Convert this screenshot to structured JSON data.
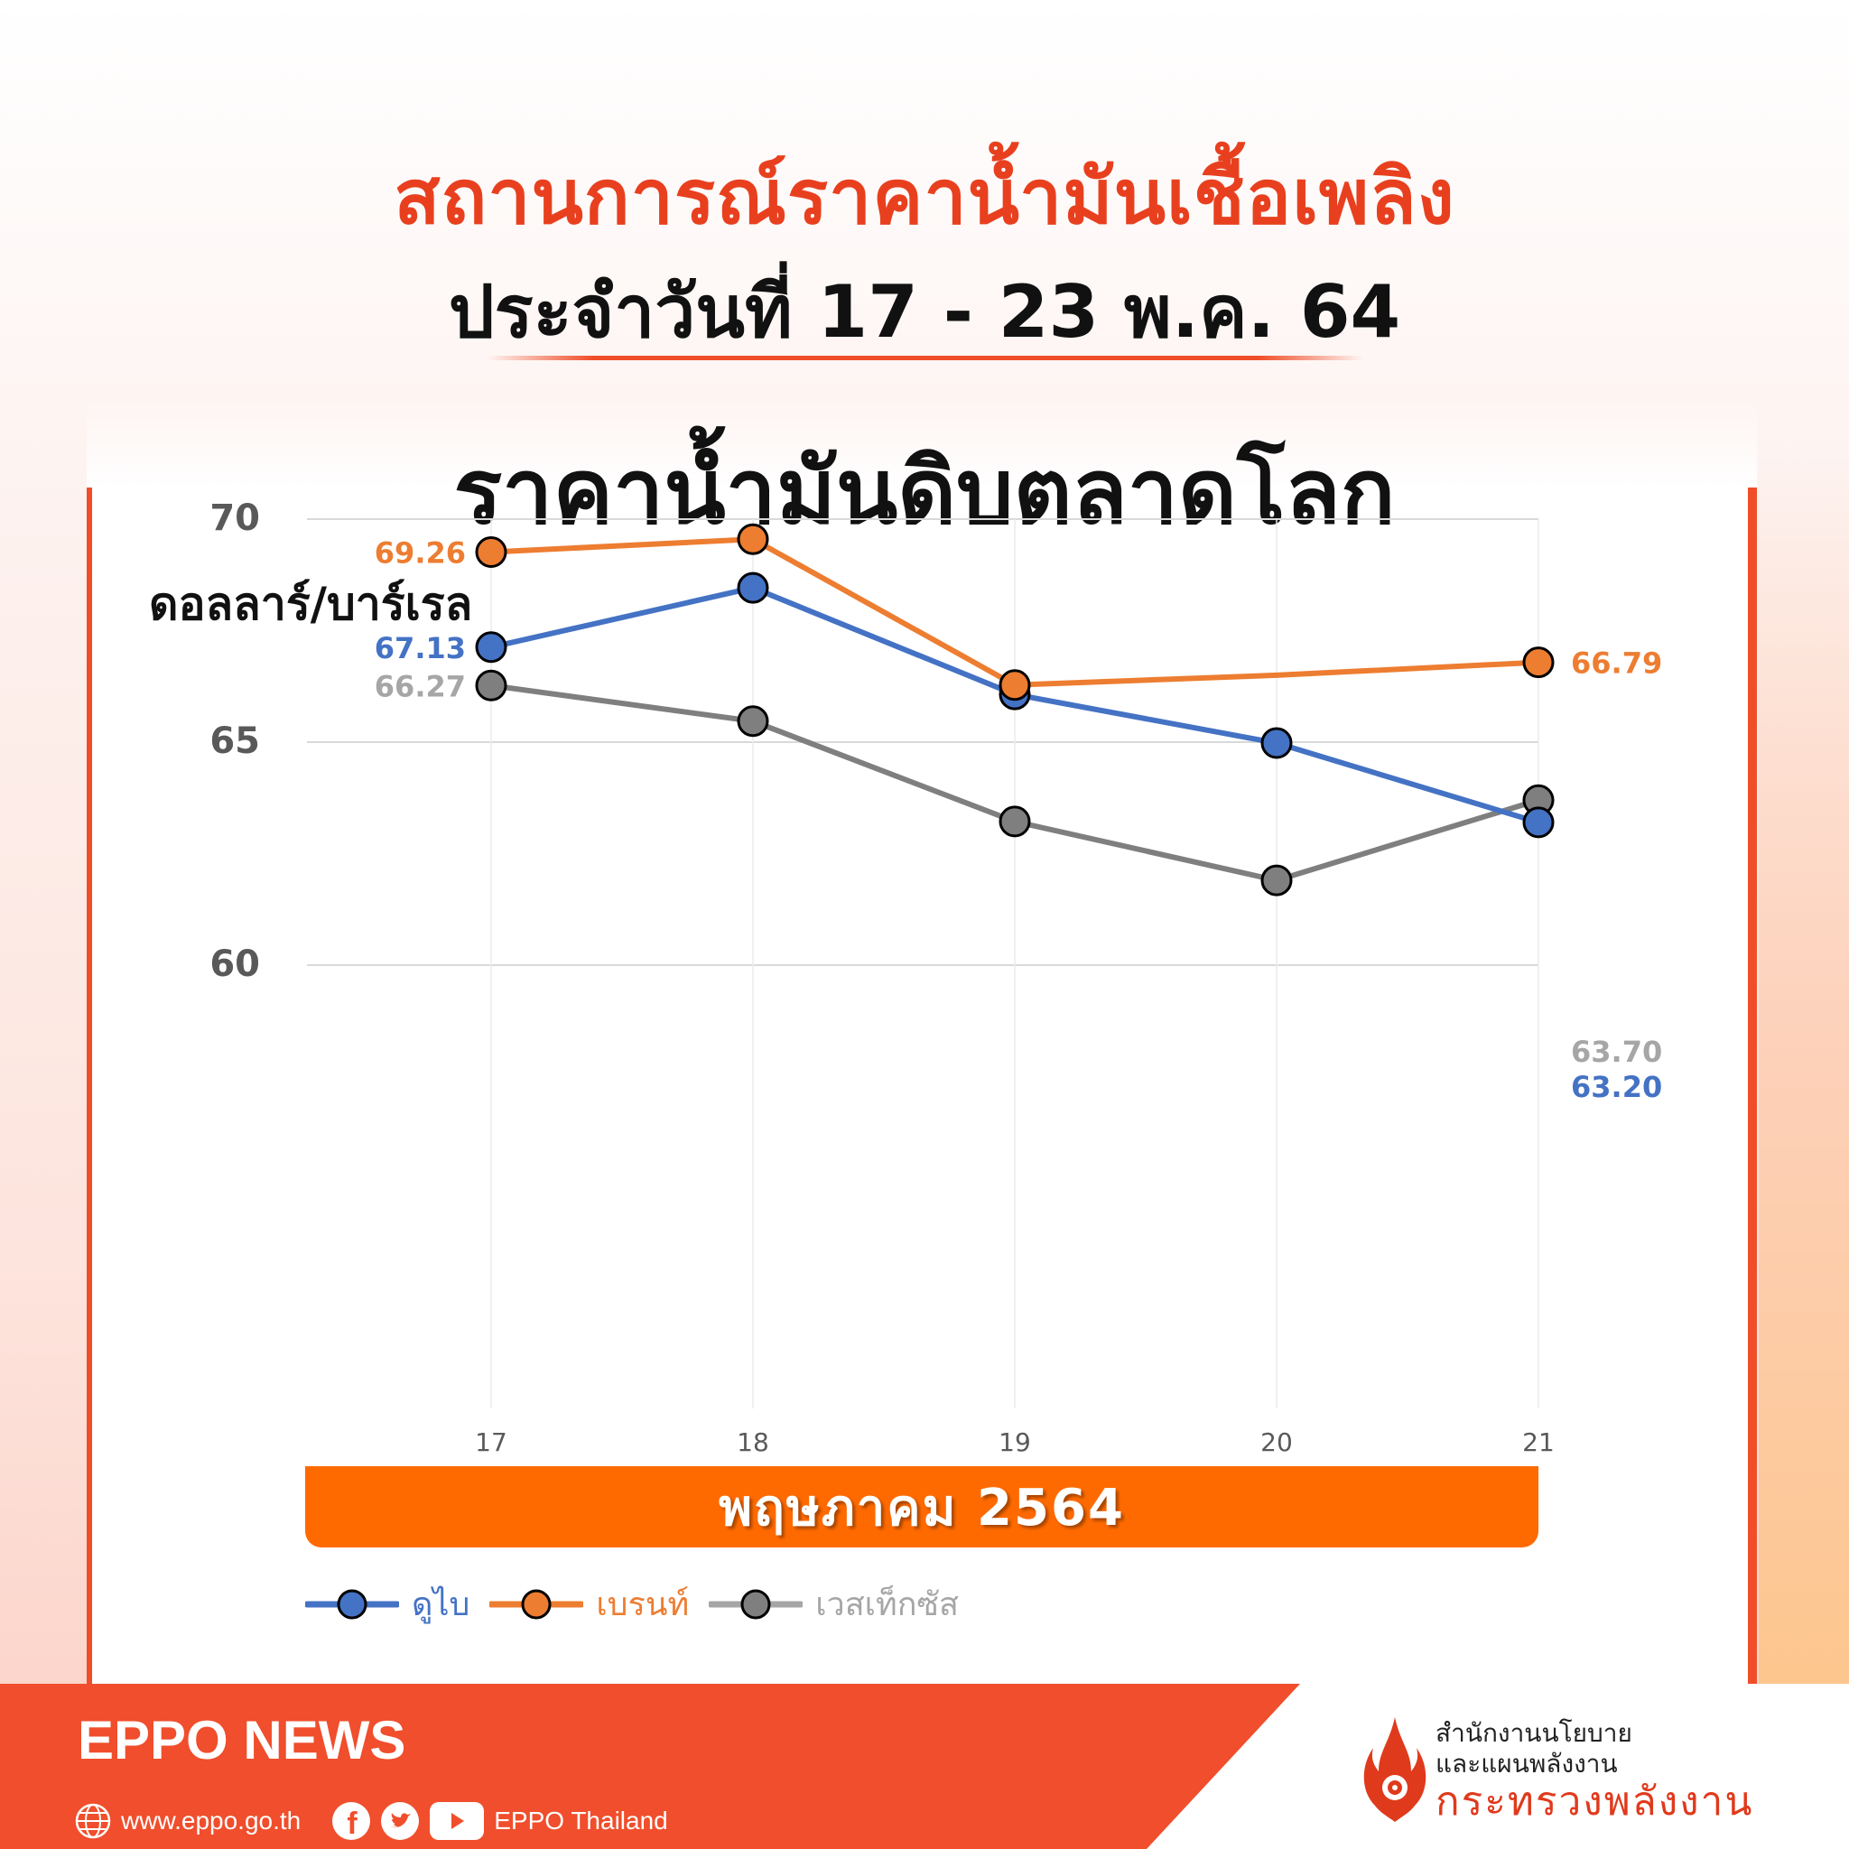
{
  "header": {
    "title": "สถานการณ์ราคาน้ำมันเชื้อเพลิง",
    "subtitle": "ประจำวันที่ 17 - 23 พ.ค. 64",
    "chart_heading": "ราคาน้ำมันดิบตลาดโลก"
  },
  "colors": {
    "accent_red": "#f04e29",
    "month_bar": "#ff6a00",
    "dubai": "#4472c4",
    "brent": "#ed7d31",
    "wti": "#7f7f7f"
  },
  "chart_data": {
    "type": "line",
    "title": "ราคาน้ำมันดิบตลาดโลก",
    "ylabel": "ดอลลาร์/บาร์เรล",
    "xlabel": "พฤษภาคม 2564",
    "x": [
      "17",
      "18",
      "19",
      "20",
      "21"
    ],
    "ylim": [
      57.5,
      70
    ],
    "yticks": [
      "70",
      "65",
      "60"
    ],
    "grid": true,
    "legend_position": "bottom-left",
    "series": [
      {
        "name": "ดูไบ",
        "color": "#4472c4",
        "values": [
          67.13,
          68.46,
          66.07,
          64.98,
          63.2
        ],
        "labels": {
          "0": "67.13",
          "4": "63.20"
        }
      },
      {
        "name": "เบรนท์",
        "color": "#ed7d31",
        "values": [
          69.26,
          69.55,
          66.28,
          66.5,
          66.79
        ],
        "labels": {
          "0": "69.26",
          "4": "66.79"
        },
        "markers_missing": [
          3
        ]
      },
      {
        "name": "เวสเท็กซัส",
        "color": "#7f7f7f",
        "values": [
          66.27,
          65.47,
          63.22,
          61.9,
          63.7
        ],
        "labels": {
          "0": "66.27",
          "4": "63.70"
        }
      }
    ]
  },
  "month_label": "พฤษภาคม  2564",
  "legend": [
    {
      "label": "ดูไบ",
      "color": "#4472c4"
    },
    {
      "label": "เบรนท์",
      "color": "#ed7d31"
    },
    {
      "label": "เวสเท็กซัส",
      "color": "#a6a6a6"
    }
  ],
  "footer": {
    "brand": "EPPO NEWS",
    "website": "www.eppo.go.th",
    "social_name": "EPPO Thailand",
    "org_line1": "สำนักงานนโยบาย",
    "org_line2": "และแผนพลังงาน",
    "org_line3": "กระทรวงพลังงาน"
  }
}
